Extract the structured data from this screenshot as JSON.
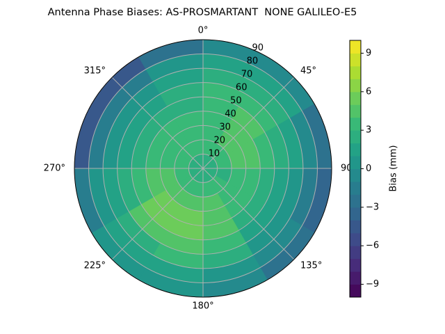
{
  "chart_data": {
    "type": "polar-contour",
    "title": "Antenna Phase Biases: AS-PROSMARTANT  NONE GALILEO-E5",
    "colorbar_label": "Bias (mm)",
    "colormap": "viridis",
    "clim": [
      -10,
      10
    ],
    "level_step": 1,
    "cticks": [
      {
        "value": -9,
        "label": "−9"
      },
      {
        "value": -6,
        "label": "−6"
      },
      {
        "value": -3,
        "label": "−3"
      },
      0,
      3,
      6,
      9
    ],
    "rlim": [
      0,
      90
    ],
    "rticks": [
      10,
      20,
      30,
      40,
      50,
      60,
      70,
      80,
      90
    ],
    "thetaticks": [
      {
        "value": 0,
        "label": "0°"
      },
      {
        "value": 45,
        "label": "45°"
      },
      90,
      {
        "value": 135,
        "label": "135°"
      },
      {
        "value": 180,
        "label": "180°"
      },
      {
        "value": 225,
        "label": "225°"
      },
      {
        "value": 270,
        "label": "270°"
      },
      {
        "value": 315,
        "label": "315°"
      }
    ],
    "grid": true,
    "r_bins": [
      0,
      10,
      20,
      30,
      40,
      50,
      60,
      70,
      80,
      90
    ],
    "theta_bins": [
      0,
      30,
      60,
      90,
      120,
      150,
      180,
      210,
      240,
      270,
      300,
      330,
      360
    ],
    "values": [
      [
        2,
        2,
        2,
        2,
        2,
        2,
        2,
        2,
        2,
        2,
        2,
        2
      ],
      [
        3,
        3,
        3,
        2,
        3,
        3,
        3,
        3,
        3,
        3,
        3,
        3
      ],
      [
        3,
        4,
        4,
        3,
        3,
        4,
        4,
        4,
        4,
        3,
        3,
        3
      ],
      [
        3,
        4,
        4,
        3,
        3,
        4,
        5,
        5,
        4,
        3,
        3,
        3
      ],
      [
        3,
        4,
        3,
        2,
        2,
        4,
        5,
        5,
        3,
        2,
        2,
        2
      ],
      [
        3,
        3,
        2,
        1,
        1,
        3,
        4,
        4,
        2,
        1,
        1,
        2
      ],
      [
        2,
        2,
        1,
        0,
        0,
        2,
        3,
        2,
        1,
        0,
        0,
        1
      ],
      [
        1,
        1,
        -1,
        -2,
        -1,
        0,
        1,
        1,
        0,
        -2,
        -2,
        0
      ],
      [
        -1,
        -1,
        -3,
        -4,
        -3,
        -1,
        0,
        0,
        -2,
        -5,
        -5,
        -3
      ]
    ]
  }
}
